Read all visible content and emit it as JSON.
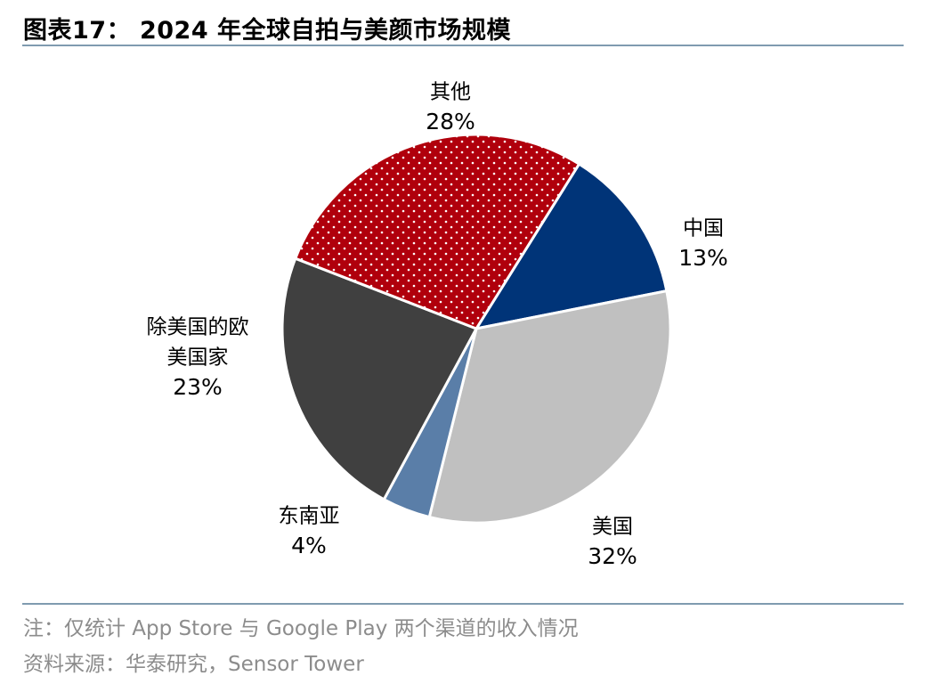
{
  "title": "图表17：  2024 年全球自拍与美颜市场规模",
  "footer": {
    "note": "注：仅统计 App Store 与 Google Play 两个渠道的收入情况",
    "source": "资料来源：华泰研究，Sensor Tower"
  },
  "chart_data": {
    "type": "pie",
    "title": "",
    "slices": [
      {
        "label": "中国",
        "value": 13,
        "pct_label": "13%",
        "color": "#003478",
        "pattern": "solid"
      },
      {
        "label": "美国",
        "value": 32,
        "pct_label": "32%",
        "color": "#c0c0c0",
        "pattern": "solid"
      },
      {
        "label": "东南亚",
        "value": 4,
        "pct_label": "4%",
        "color": "#5a7ea8",
        "pattern": "solid"
      },
      {
        "label": "除美国的欧美国家",
        "value": 23,
        "pct_label": "23%",
        "color": "#404040",
        "pattern": "solid"
      },
      {
        "label": "其他",
        "value": 28,
        "pct_label": "28%",
        "color": "#b0000c",
        "pattern": "white-dots"
      }
    ],
    "start": "top-right, clockwise",
    "legend": "none (direct labels)"
  }
}
